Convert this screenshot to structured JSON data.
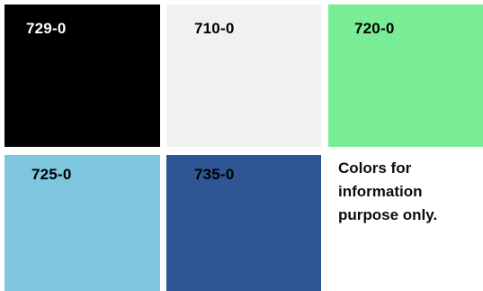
{
  "swatches": [
    {
      "code": "729-0",
      "color": "#000000",
      "text_color": "#ffffff"
    },
    {
      "code": "710-0",
      "color": "#f1f1f1",
      "text_color": "#000000"
    },
    {
      "code": "720-0",
      "color": "#78ed95",
      "text_color": "#000000"
    },
    {
      "code": "725-0",
      "color": "#7ec5de",
      "text_color": "#000000"
    },
    {
      "code": "735-0",
      "color": "#2e5594",
      "text_color": "#000000"
    }
  ],
  "note": {
    "line1": "Colors for",
    "line2": "information",
    "line3": "purpose only."
  }
}
